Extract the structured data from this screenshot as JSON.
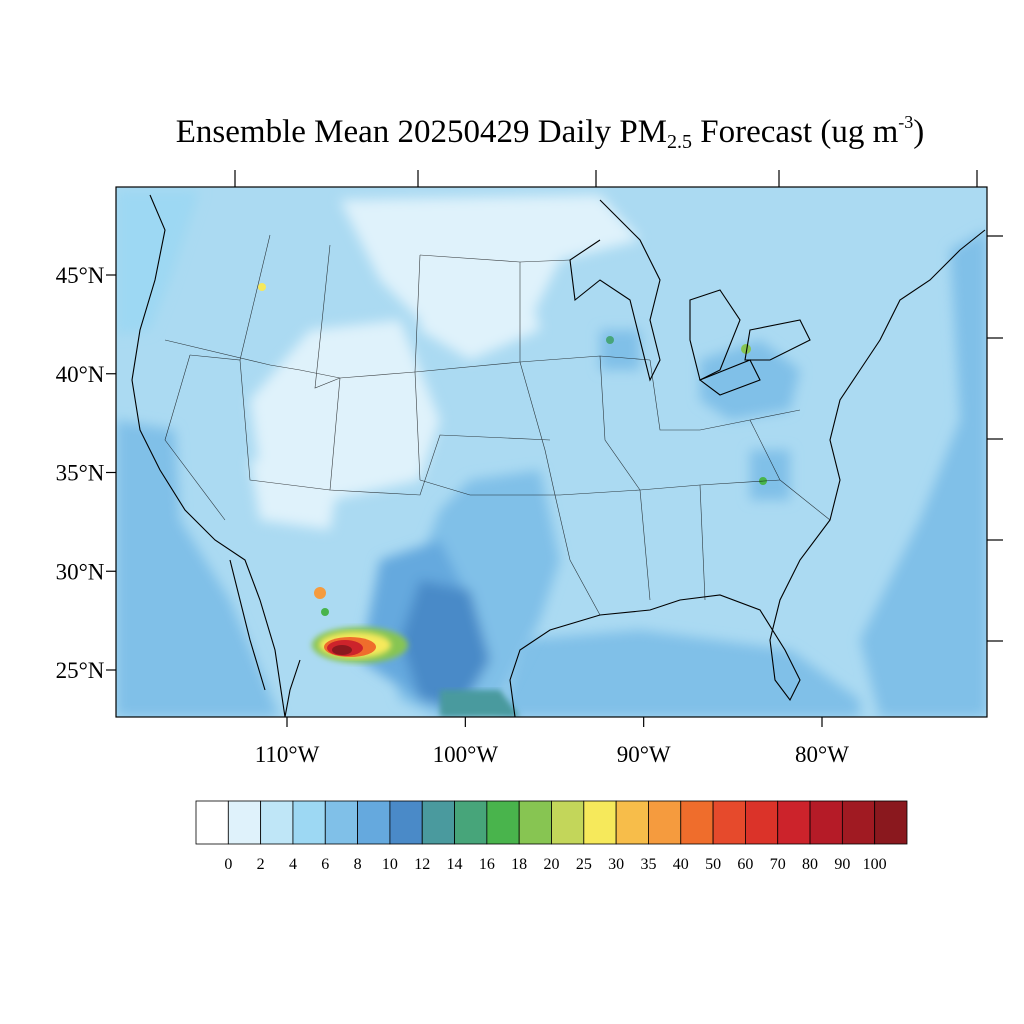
{
  "title": {
    "main": "Ensemble Mean 20250429 Daily PM",
    "subscript": "2.5",
    "rest": " Forecast (ug m",
    "superscript": "-3",
    "close": ")"
  },
  "map": {
    "region": "Contiguous United States",
    "lat_labels": [
      "45°N",
      "40°N",
      "35°N",
      "30°N",
      "25°N"
    ],
    "lat_values": [
      45,
      40,
      35,
      30,
      25
    ],
    "lon_labels": [
      "110°W",
      "100°W",
      "90°W",
      "80°W"
    ],
    "lon_values": [
      -110,
      -100,
      -90,
      -80
    ],
    "background_color": "#abdaf2"
  },
  "colorbar": {
    "labels": [
      "0",
      "2",
      "4",
      "6",
      "8",
      "10",
      "12",
      "14",
      "16",
      "18",
      "20",
      "25",
      "30",
      "35",
      "40",
      "50",
      "60",
      "70",
      "80",
      "90",
      "100"
    ],
    "colors": [
      "#ffffff",
      "#dff2fb",
      "#bfe6f7",
      "#9dd8f3",
      "#80c0e8",
      "#65a9de",
      "#4a8ac8",
      "#4a9a9e",
      "#47a57a",
      "#49b44c",
      "#87c552",
      "#c3d65a",
      "#f6e95b",
      "#f7bd4a",
      "#f59b3e",
      "#ef6d2c",
      "#e64a2c",
      "#db3329",
      "#cc232b",
      "#b51b27",
      "#a01a22",
      "#8a181e"
    ]
  }
}
